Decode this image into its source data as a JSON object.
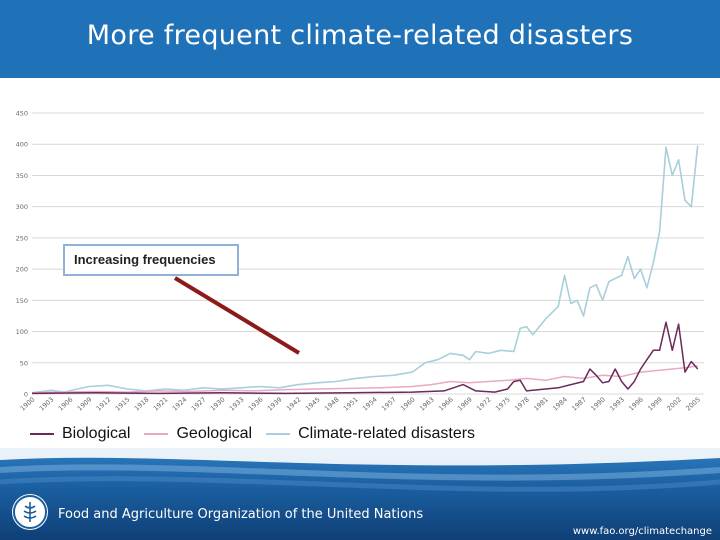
{
  "slide": {
    "title": "More frequent climate-related disasters"
  },
  "callout": {
    "label": "Increasing frequencies"
  },
  "footer": {
    "organization": "Food and Agriculture Organization of the United Nations",
    "url": "www.fao.org/climatechange",
    "logo_text": "FAO"
  },
  "colors": {
    "title_bar": "#1f72b8",
    "biological": "#6b2a58",
    "geological": "#e7a9c6",
    "climate": "#a8cfdb",
    "arrow": "#8b1a1a"
  },
  "chart_data": {
    "type": "line",
    "title": "",
    "xlabel": "",
    "ylabel": "",
    "ylim": [
      0,
      450
    ],
    "yticks": [
      0,
      50,
      100,
      150,
      200,
      250,
      300,
      350,
      400,
      450
    ],
    "xlim": [
      1900,
      2006
    ],
    "xticks": [
      "1900",
      "1903",
      "1906",
      "1909",
      "1912",
      "1915",
      "1918",
      "1921",
      "1924",
      "1927",
      "1930",
      "1933",
      "1936",
      "1939",
      "1942",
      "1945",
      "1948",
      "1951",
      "1954",
      "1957",
      "1960",
      "1963",
      "1966",
      "1969",
      "1972",
      "1975",
      "1978",
      "1981",
      "1984",
      "1987",
      "1990",
      "1993",
      "1996",
      "1999",
      "2002",
      "2005"
    ],
    "grid": true,
    "legend_position": "bottom-left",
    "series": [
      {
        "name": "Biological",
        "color": "#6b2a58",
        "points": [
          [
            1900,
            1
          ],
          [
            1910,
            2
          ],
          [
            1920,
            1
          ],
          [
            1930,
            2
          ],
          [
            1940,
            1
          ],
          [
            1950,
            2
          ],
          [
            1960,
            3
          ],
          [
            1965,
            5
          ],
          [
            1968,
            15
          ],
          [
            1970,
            5
          ],
          [
            1973,
            3
          ],
          [
            1975,
            8
          ],
          [
            1976,
            20
          ],
          [
            1977,
            22
          ],
          [
            1978,
            5
          ],
          [
            1980,
            7
          ],
          [
            1983,
            10
          ],
          [
            1985,
            15
          ],
          [
            1987,
            20
          ],
          [
            1988,
            40
          ],
          [
            1989,
            30
          ],
          [
            1990,
            18
          ],
          [
            1991,
            20
          ],
          [
            1992,
            40
          ],
          [
            1993,
            20
          ],
          [
            1994,
            8
          ],
          [
            1995,
            20
          ],
          [
            1996,
            40
          ],
          [
            1997,
            55
          ],
          [
            1998,
            70
          ],
          [
            1999,
            70
          ],
          [
            2000,
            115
          ],
          [
            2001,
            70
          ],
          [
            2002,
            112
          ],
          [
            2003,
            35
          ],
          [
            2004,
            52
          ],
          [
            2005,
            40
          ]
        ]
      },
      {
        "name": "Geological",
        "color": "#e7a9c6",
        "points": [
          [
            1900,
            2
          ],
          [
            1905,
            3
          ],
          [
            1910,
            4
          ],
          [
            1915,
            3
          ],
          [
            1920,
            5
          ],
          [
            1925,
            4
          ],
          [
            1930,
            6
          ],
          [
            1935,
            5
          ],
          [
            1940,
            7
          ],
          [
            1945,
            8
          ],
          [
            1950,
            9
          ],
          [
            1955,
            10
          ],
          [
            1960,
            12
          ],
          [
            1963,
            15
          ],
          [
            1966,
            20
          ],
          [
            1969,
            18
          ],
          [
            1972,
            20
          ],
          [
            1975,
            22
          ],
          [
            1978,
            25
          ],
          [
            1981,
            22
          ],
          [
            1984,
            28
          ],
          [
            1987,
            25
          ],
          [
            1990,
            30
          ],
          [
            1993,
            28
          ],
          [
            1996,
            35
          ],
          [
            1999,
            38
          ],
          [
            2001,
            40
          ],
          [
            2003,
            42
          ],
          [
            2005,
            45
          ]
        ]
      },
      {
        "name": "Climate-related disasters",
        "color": "#a8cfdb",
        "points": [
          [
            1900,
            2
          ],
          [
            1903,
            6
          ],
          [
            1905,
            3
          ],
          [
            1909,
            12
          ],
          [
            1912,
            14
          ],
          [
            1915,
            8
          ],
          [
            1918,
            5
          ],
          [
            1921,
            8
          ],
          [
            1924,
            6
          ],
          [
            1927,
            10
          ],
          [
            1930,
            8
          ],
          [
            1933,
            10
          ],
          [
            1936,
            12
          ],
          [
            1939,
            10
          ],
          [
            1942,
            15
          ],
          [
            1945,
            18
          ],
          [
            1948,
            20
          ],
          [
            1951,
            25
          ],
          [
            1954,
            28
          ],
          [
            1957,
            30
          ],
          [
            1960,
            35
          ],
          [
            1962,
            50
          ],
          [
            1964,
            55
          ],
          [
            1966,
            65
          ],
          [
            1968,
            62
          ],
          [
            1969,
            55
          ],
          [
            1970,
            68
          ],
          [
            1972,
            65
          ],
          [
            1974,
            70
          ],
          [
            1976,
            68
          ],
          [
            1977,
            105
          ],
          [
            1978,
            108
          ],
          [
            1979,
            95
          ],
          [
            1981,
            120
          ],
          [
            1983,
            140
          ],
          [
            1984,
            190
          ],
          [
            1985,
            145
          ],
          [
            1986,
            150
          ],
          [
            1987,
            125
          ],
          [
            1988,
            170
          ],
          [
            1989,
            175
          ],
          [
            1990,
            150
          ],
          [
            1991,
            180
          ],
          [
            1992,
            185
          ],
          [
            1993,
            190
          ],
          [
            1994,
            220
          ],
          [
            1995,
            185
          ],
          [
            1996,
            200
          ],
          [
            1997,
            170
          ],
          [
            1998,
            210
          ],
          [
            1999,
            260
          ],
          [
            2000,
            395
          ],
          [
            2001,
            350
          ],
          [
            2002,
            375
          ],
          [
            2003,
            310
          ],
          [
            2004,
            300
          ],
          [
            2005,
            398
          ]
        ]
      }
    ],
    "annotation": "Increasing frequencies"
  }
}
